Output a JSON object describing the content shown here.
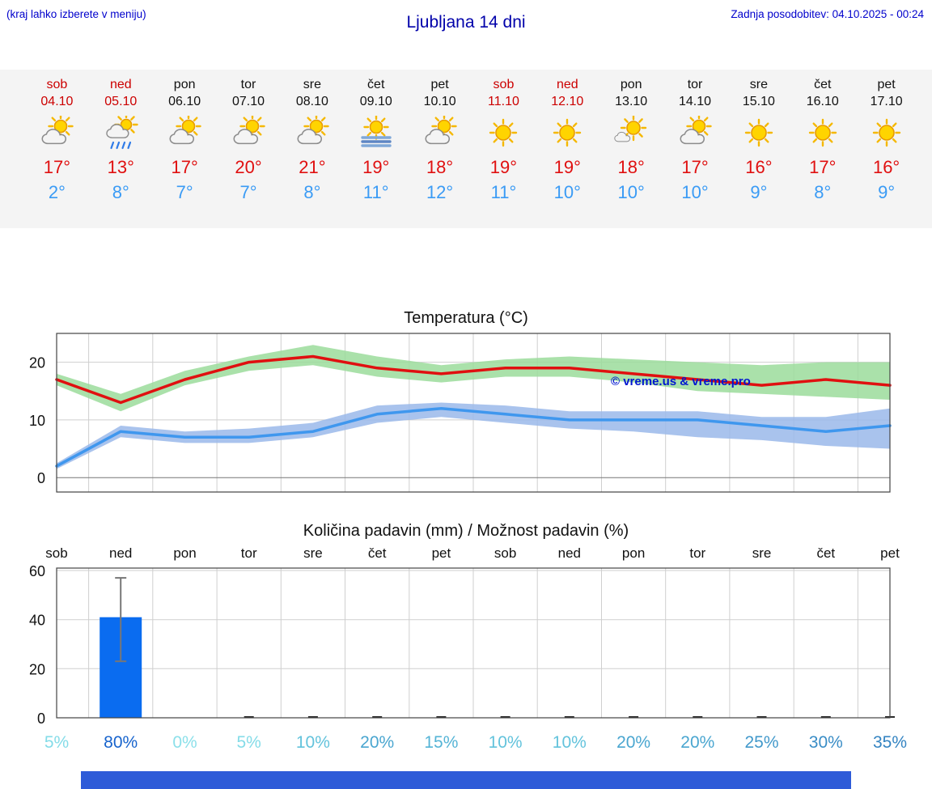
{
  "header": {
    "note": "(kraj lahko izberete v meniju)",
    "title": "Ljubljana 14 dni",
    "updated": "Zadnja posodobitev: 04.10.2025 - 00:24"
  },
  "forecast": {
    "days": [
      {
        "day": "sob",
        "date": "04.10",
        "weekend": true,
        "icon": "partly-cloudy",
        "high": "17°",
        "low": "2°"
      },
      {
        "day": "ned",
        "date": "05.10",
        "weekend": true,
        "icon": "rain",
        "high": "13°",
        "low": "8°"
      },
      {
        "day": "pon",
        "date": "06.10",
        "weekend": false,
        "icon": "partly-cloudy",
        "high": "17°",
        "low": "7°"
      },
      {
        "day": "tor",
        "date": "07.10",
        "weekend": false,
        "icon": "partly-cloudy",
        "high": "20°",
        "low": "7°"
      },
      {
        "day": "sre",
        "date": "08.10",
        "weekend": false,
        "icon": "partly-cloudy",
        "high": "21°",
        "low": "8°"
      },
      {
        "day": "čet",
        "date": "09.10",
        "weekend": false,
        "icon": "fog",
        "high": "19°",
        "low": "11°"
      },
      {
        "day": "pet",
        "date": "10.10",
        "weekend": false,
        "icon": "partly-cloudy",
        "high": "18°",
        "low": "12°"
      },
      {
        "day": "sob",
        "date": "11.10",
        "weekend": true,
        "icon": "sunny",
        "high": "19°",
        "low": "11°"
      },
      {
        "day": "ned",
        "date": "12.10",
        "weekend": true,
        "icon": "sunny",
        "high": "19°",
        "low": "10°"
      },
      {
        "day": "pon",
        "date": "13.10",
        "weekend": false,
        "icon": "mostly-sunny",
        "high": "18°",
        "low": "10°"
      },
      {
        "day": "tor",
        "date": "14.10",
        "weekend": false,
        "icon": "partly-cloudy",
        "high": "17°",
        "low": "10°"
      },
      {
        "day": "sre",
        "date": "15.10",
        "weekend": false,
        "icon": "sunny",
        "high": "16°",
        "low": "9°"
      },
      {
        "day": "čet",
        "date": "16.10",
        "weekend": false,
        "icon": "sunny",
        "high": "17°",
        "low": "8°"
      },
      {
        "day": "pet",
        "date": "17.10",
        "weekend": false,
        "icon": "sunny",
        "high": "16°",
        "low": "9°"
      }
    ]
  },
  "chart_data": [
    {
      "type": "line",
      "title": "Temperatura (°C)",
      "x_labels": [
        "sob",
        "ned",
        "pon",
        "tor",
        "sre",
        "čet",
        "pet",
        "sob",
        "ned",
        "pon",
        "tor",
        "sre",
        "čet",
        "pet"
      ],
      "ylim": [
        -2.5,
        25
      ],
      "yticks": [
        0,
        10,
        20
      ],
      "grid": true,
      "watermark": "© vreme.us & vreme.pro",
      "watermark_color": "#0016d0",
      "series": [
        {
          "name": "max-temp",
          "color": "#e01010",
          "values": [
            17,
            13,
            17,
            20,
            21,
            19,
            18,
            19,
            19,
            18,
            17,
            16,
            17,
            16
          ],
          "band_upper": [
            18,
            14.5,
            18.5,
            21,
            23,
            21,
            19.5,
            20.5,
            21,
            20.5,
            20,
            19.5,
            20,
            20
          ],
          "band_lower": [
            16,
            11.5,
            16,
            18.5,
            19.5,
            17.5,
            16.5,
            17.5,
            17.5,
            16.5,
            15,
            14.5,
            14,
            13.5
          ],
          "band_color": "#9bdc9b"
        },
        {
          "name": "min-temp",
          "color": "#3f97ee",
          "values": [
            2,
            8,
            7,
            7,
            8,
            11,
            12,
            11,
            10,
            10,
            10,
            9,
            8,
            9
          ],
          "band_upper": [
            2.5,
            9,
            8,
            8.5,
            9.5,
            12.5,
            13,
            12.5,
            11.5,
            11.5,
            11.5,
            10.5,
            10.5,
            12
          ],
          "band_lower": [
            1.5,
            7,
            6,
            6,
            7,
            9.5,
            10.5,
            9.5,
            8.5,
            8,
            7,
            6.5,
            5.5,
            5
          ],
          "band_color": "#9ab8ea"
        }
      ]
    },
    {
      "type": "bar",
      "title": "Količina padavin (mm) / Možnost padavin (%)",
      "x_labels": [
        "sob",
        "ned",
        "pon",
        "tor",
        "sre",
        "čet",
        "pet",
        "sob",
        "ned",
        "pon",
        "tor",
        "sre",
        "čet",
        "pet"
      ],
      "ylim": [
        0,
        61
      ],
      "yticks": [
        0,
        20,
        40,
        60
      ],
      "grid": true,
      "bar_color": "#0a6cf0",
      "values": [
        0,
        41,
        0,
        0.5,
        0.5,
        0.5,
        0.5,
        0.5,
        0.5,
        0.5,
        0.5,
        0.5,
        0.5,
        0.5
      ],
      "error_bar": {
        "index": 1,
        "low": 23,
        "high": 57
      },
      "percent_labels": [
        {
          "text": "5%",
          "color": "#84dce8"
        },
        {
          "text": "80%",
          "color": "#1864cd"
        },
        {
          "text": "0%",
          "color": "#8ce0ea"
        },
        {
          "text": "5%",
          "color": "#84dce8"
        },
        {
          "text": "10%",
          "color": "#63c3dc"
        },
        {
          "text": "20%",
          "color": "#4aa6d0"
        },
        {
          "text": "15%",
          "color": "#55b4d6"
        },
        {
          "text": "10%",
          "color": "#63c3dc"
        },
        {
          "text": "10%",
          "color": "#63c3dc"
        },
        {
          "text": "20%",
          "color": "#4aa6d0"
        },
        {
          "text": "20%",
          "color": "#4aa6d0"
        },
        {
          "text": "25%",
          "color": "#4299cb"
        },
        {
          "text": "30%",
          "color": "#3a8dc6"
        },
        {
          "text": "35%",
          "color": "#3484c2"
        }
      ]
    }
  ],
  "colors": {
    "accent_blue": "#0000cc",
    "title_blue": "#0000aa",
    "weekend_red": "#cc0000",
    "high_temp": "#e01010",
    "low_temp": "#3a9bf5",
    "footer_bar": "#2e5bd8"
  }
}
